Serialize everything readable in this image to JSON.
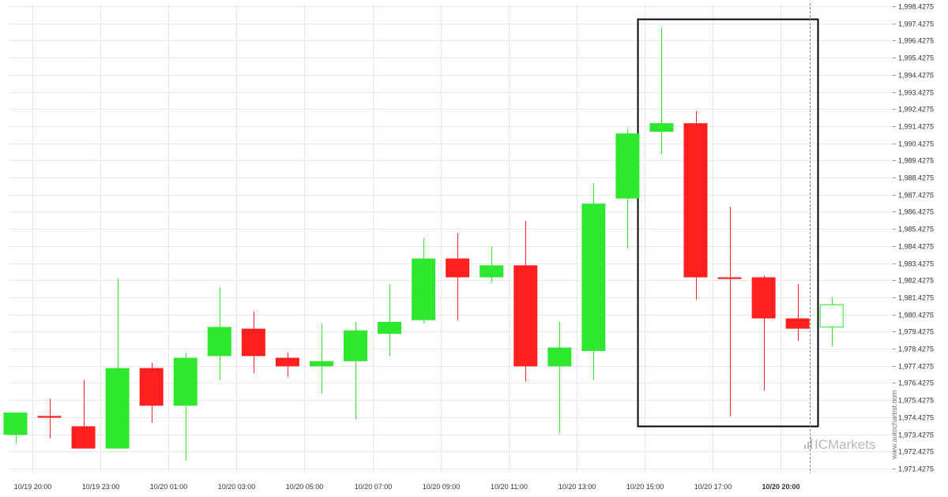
{
  "chart_data": {
    "type": "candlestick",
    "y_axis": {
      "ticks": [
        "1,998.4275",
        "1,997.4275",
        "1,996.4275",
        "1,995.4275",
        "1,994.4275",
        "1,993.4275",
        "1,992.4275",
        "1,991.4275",
        "1,990.4275",
        "1,989.4275",
        "1,988.4275",
        "1,987.4275",
        "1,986.4275",
        "1,985.4275",
        "1,984.4275",
        "1,983.4275",
        "1,982.4275",
        "1,981.4275",
        "1,980.4275",
        "1,979.4275",
        "1,978.4275",
        "1,977.4275",
        "1,976.4275",
        "1,975.4275",
        "1,974.4275",
        "1,973.4275",
        "1,972.4275",
        "1,971.4275"
      ],
      "min": 1971.4275,
      "max": 1998.4275,
      "position": "right"
    },
    "x_axis": {
      "tick_labels": [
        "10/19 20:00",
        "10/19 23:00",
        "10/20 01:00",
        "10/20 03:00",
        "10/20 05:00",
        "10/20 07:00",
        "10/20 09:00",
        "10/20 11:00",
        "10/20 13:00",
        "10/20 15:00",
        "10/20 17:00",
        "10/20 20:00"
      ],
      "tick_candle_index": [
        0.5,
        2.5,
        4.5,
        6.5,
        8.5,
        10.5,
        12.5,
        14.5,
        16.5,
        18.5,
        20.5,
        22.5
      ],
      "highlighted_label": "10/20 20:00"
    },
    "grid": true,
    "colors": {
      "up": "#2ee830",
      "down": "#ff1f1f",
      "last_up_fill": "#ffffff",
      "last_up_stroke": "#2ee830"
    },
    "candles": [
      {
        "o": 1973.4,
        "h": 1974.7,
        "l": 1972.9,
        "c": 1974.7
      },
      {
        "o": 1974.5,
        "h": 1975.5,
        "l": 1973.2,
        "c": 1974.4
      },
      {
        "o": 1973.9,
        "h": 1976.6,
        "l": 1972.6,
        "c": 1972.6
      },
      {
        "o": 1972.6,
        "h": 1982.5,
        "l": 1972.6,
        "c": 1977.3
      },
      {
        "o": 1977.3,
        "h": 1977.6,
        "l": 1974.1,
        "c": 1975.1
      },
      {
        "o": 1975.1,
        "h": 1978.2,
        "l": 1971.9,
        "c": 1977.9
      },
      {
        "o": 1978.0,
        "h": 1982.0,
        "l": 1976.6,
        "c": 1979.7
      },
      {
        "o": 1979.6,
        "h": 1980.6,
        "l": 1977.0,
        "c": 1978.0
      },
      {
        "o": 1977.9,
        "h": 1978.2,
        "l": 1976.8,
        "c": 1977.4
      },
      {
        "o": 1977.4,
        "h": 1979.9,
        "l": 1975.8,
        "c": 1977.7
      },
      {
        "o": 1977.7,
        "h": 1980.0,
        "l": 1974.3,
        "c": 1979.5
      },
      {
        "o": 1979.3,
        "h": 1982.2,
        "l": 1978.0,
        "c": 1980.0
      },
      {
        "o": 1980.1,
        "h": 1984.9,
        "l": 1979.9,
        "c": 1983.7
      },
      {
        "o": 1983.7,
        "h": 1985.2,
        "l": 1980.1,
        "c": 1982.6
      },
      {
        "o": 1982.6,
        "h": 1984.4,
        "l": 1982.3,
        "c": 1983.3
      },
      {
        "o": 1983.3,
        "h": 1985.9,
        "l": 1976.5,
        "c": 1977.4
      },
      {
        "o": 1977.4,
        "h": 1980.0,
        "l": 1973.5,
        "c": 1978.5
      },
      {
        "o": 1978.3,
        "h": 1988.1,
        "l": 1976.6,
        "c": 1986.9
      },
      {
        "o": 1987.2,
        "h": 1991.3,
        "l": 1984.3,
        "c": 1991.0
      },
      {
        "o": 1991.1,
        "h": 1997.2,
        "l": 1989.8,
        "c": 1991.6
      },
      {
        "o": 1991.6,
        "h": 1992.3,
        "l": 1981.3,
        "c": 1982.6
      },
      {
        "o": 1982.6,
        "h": 1986.7,
        "l": 1974.5,
        "c": 1982.5
      },
      {
        "o": 1982.6,
        "h": 1982.7,
        "l": 1976.0,
        "c": 1980.2
      },
      {
        "o": 1980.2,
        "h": 1982.2,
        "l": 1978.9,
        "c": 1979.6
      },
      {
        "o": 1979.7,
        "h": 1981.4,
        "l": 1978.6,
        "c": 1981.0
      }
    ],
    "annotations": [
      {
        "type": "rectangle",
        "from_candle": 18.3,
        "to_candle": 23.6,
        "y_top": 1997.7,
        "y_bottom": 1973.9,
        "stroke": "#000000"
      },
      {
        "type": "vertical_dashed_line",
        "at_candle": 23.35,
        "stroke": "#888888"
      }
    ]
  },
  "watermark": {
    "brand_prefix": "IC",
    "brand": "Markets",
    "site": "www.autochartist.com"
  }
}
